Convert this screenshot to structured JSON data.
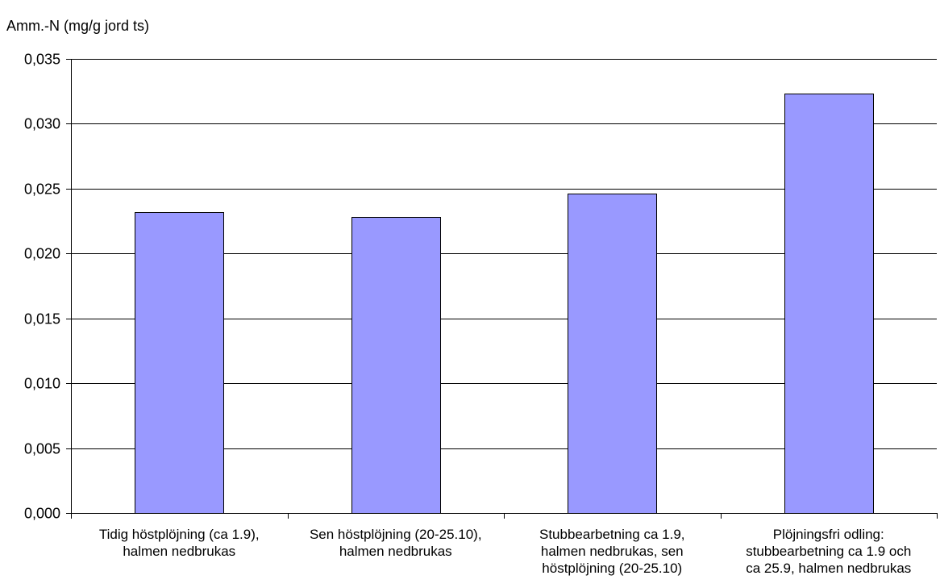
{
  "chart_data": {
    "type": "bar",
    "title": "",
    "xlabel": "",
    "ylabel": "Amm.-N (mg/g jord ts)",
    "ylim": [
      0,
      0.035
    ],
    "yticks": [
      0.0,
      0.005,
      0.01,
      0.015,
      0.02,
      0.025,
      0.03,
      0.035
    ],
    "ytick_labels": [
      "0,000",
      "0,005",
      "0,010",
      "0,015",
      "0,020",
      "0,025",
      "0,030",
      "0,035"
    ],
    "categories": [
      [
        "Tidig höstplöjning (ca 1.9),",
        "halmen nedbrukas"
      ],
      [
        "Sen höstplöjning (20-25.10),",
        "halmen nedbrukas"
      ],
      [
        "Stubbearbetning ca 1.9,",
        "halmen nedbrukas, sen",
        "höstplöjning (20-25.10)"
      ],
      [
        "Plöjningsfri odling:",
        "stubbearbetning ca 1.9 och",
        "ca 25.9, halmen nedbrukas"
      ]
    ],
    "values": [
      0.0232,
      0.0228,
      0.0246,
      0.0323
    ],
    "grid": true,
    "legend": "none",
    "colors": {
      "bar_fill": "#9999ff",
      "bar_stroke": "#000000",
      "grid": "#000000",
      "axis": "#000000",
      "background": "#ffffff"
    }
  }
}
